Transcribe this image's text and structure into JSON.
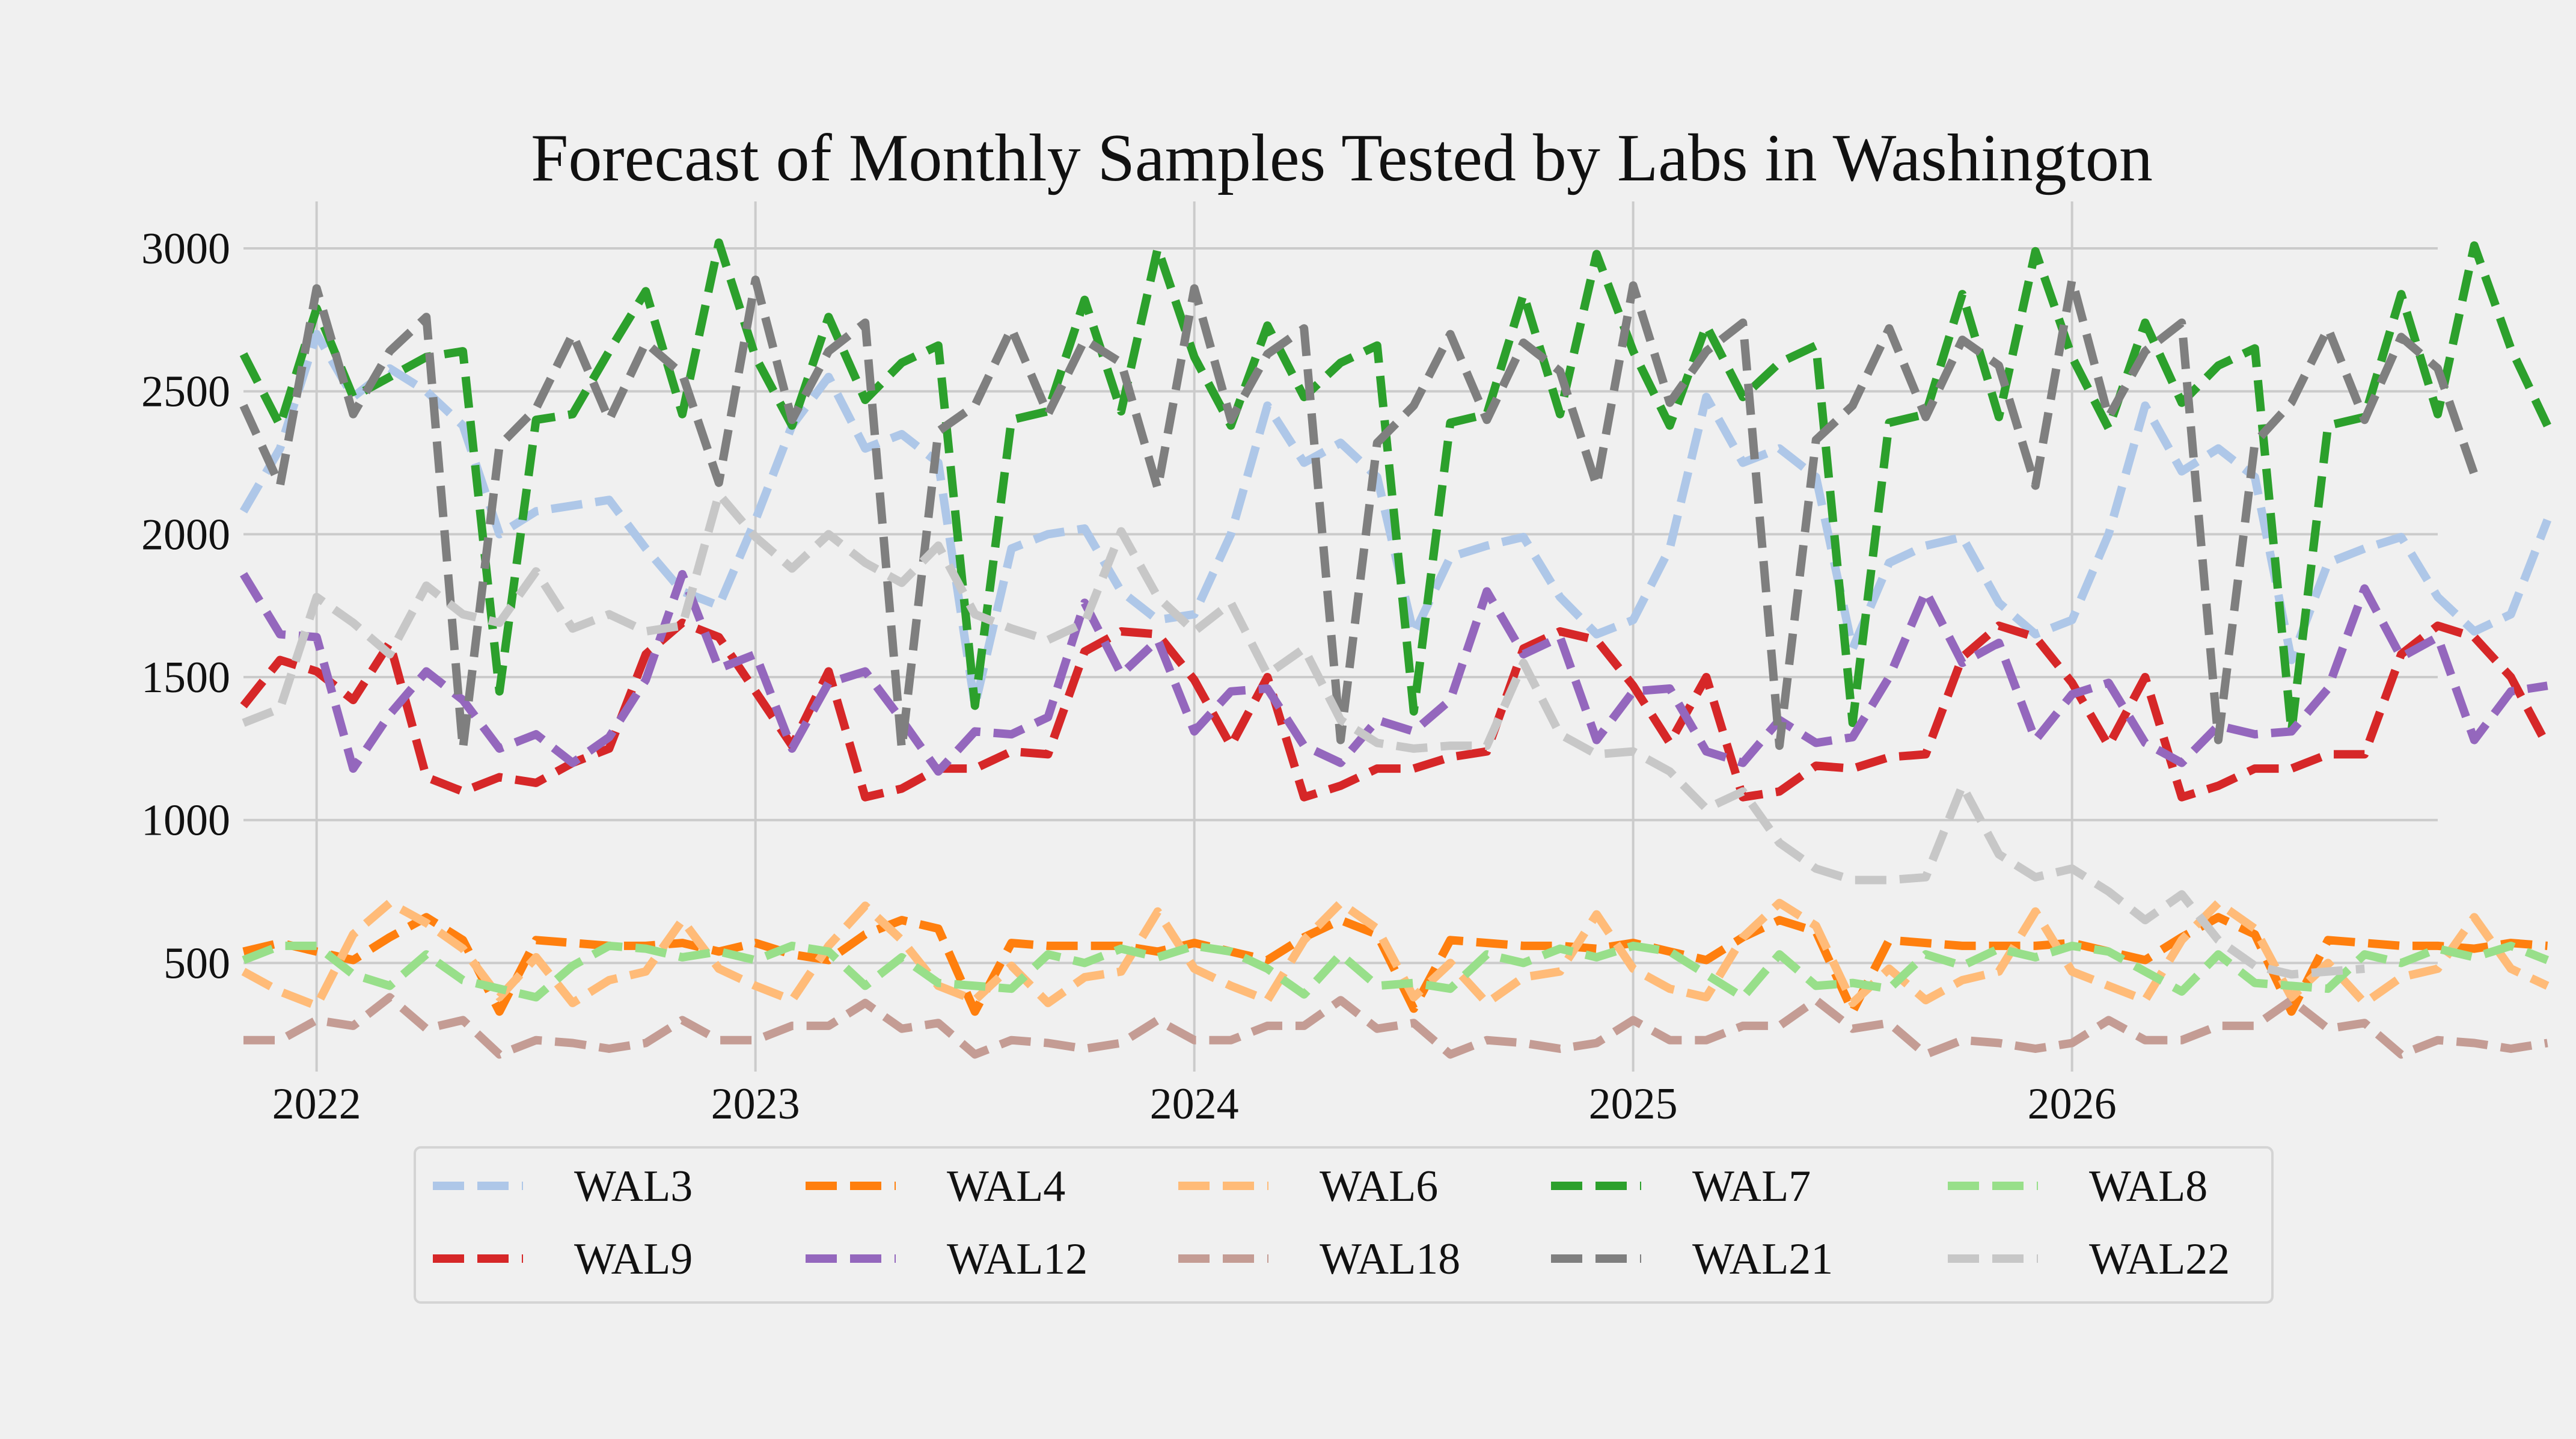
{
  "chart_data": {
    "type": "line",
    "title": "Forecast of Monthly Samples Tested by Labs in Washington",
    "xlabel": "",
    "ylabel": "",
    "x_start": "2021-11",
    "x_end": "2026-11",
    "x_ticks": [
      "2022",
      "2023",
      "2024",
      "2025",
      "2026"
    ],
    "y_ticks": [
      "500",
      "1000",
      "1500",
      "2000",
      "2500",
      "3000"
    ],
    "ylim": [
      120,
      3080
    ],
    "grid": true,
    "legend_position": "bottom-center",
    "legend_columns": 5,
    "series": [
      {
        "name": "WAL3",
        "color": "#aec7e8",
        "values": [
          2080,
          2300,
          2700,
          2480,
          2580,
          2500,
          2380,
          2000,
          2080,
          2100,
          2120,
          1950,
          1800,
          1750,
          2050,
          2380,
          2550,
          2300,
          2350,
          2250,
          1400,
          1950,
          2000,
          2020,
          1800,
          1700,
          1720,
          2000,
          2450,
          2250,
          2320,
          2200,
          1650,
          1920,
          1960,
          1990,
          1780,
          1650,
          1700,
          1950,
          2480,
          2250,
          2300,
          2200,
          1600,
          1900,
          1960,
          1990,
          1760,
          1650,
          1700,
          2000,
          2450,
          2220,
          2300,
          2200,
          1560,
          1900,
          1950,
          1990,
          1780,
          1660,
          1720,
          2050
        ]
      },
      {
        "name": "WAL4",
        "color": "#ff7f0e",
        "values": [
          540,
          570,
          540,
          510,
          590,
          660,
          580,
          330,
          580,
          570,
          560,
          560,
          570,
          540,
          570,
          530,
          510,
          600,
          650,
          620,
          330,
          570,
          560,
          560,
          560,
          540,
          570,
          540,
          510,
          590,
          650,
          600,
          340,
          580,
          570,
          560,
          560,
          550,
          570,
          540,
          510,
          590,
          650,
          610,
          330,
          580,
          570,
          560,
          560,
          560,
          570,
          540,
          510,
          590,
          660,
          600,
          330,
          580,
          570,
          560,
          560,
          550,
          570,
          560
        ]
      },
      {
        "name": "WAL6",
        "color": "#ffbb78",
        "values": [
          470,
          400,
          350,
          600,
          710,
          640,
          550,
          380,
          520,
          360,
          440,
          470,
          650,
          480,
          420,
          370,
          560,
          700,
          580,
          420,
          370,
          490,
          360,
          450,
          470,
          680,
          480,
          420,
          370,
          580,
          710,
          620,
          380,
          500,
          360,
          450,
          470,
          670,
          480,
          410,
          380,
          590,
          710,
          630,
          360,
          480,
          370,
          440,
          470,
          680,
          470,
          420,
          370,
          580,
          710,
          620,
          380,
          500,
          360,
          450,
          480,
          660,
          480,
          420
        ]
      },
      {
        "name": "WAL7",
        "color": "#2ca02c",
        "values": [
          2630,
          2380,
          2790,
          2480,
          2550,
          2620,
          2640,
          1450,
          2400,
          2420,
          2640,
          2850,
          2420,
          3020,
          2620,
          2380,
          2760,
          2470,
          2600,
          2660,
          1400,
          2400,
          2430,
          2820,
          2430,
          3000,
          2620,
          2380,
          2730,
          2480,
          2600,
          2660,
          1380,
          2390,
          2420,
          2840,
          2420,
          2980,
          2640,
          2380,
          2730,
          2480,
          2600,
          2660,
          1340,
          2390,
          2420,
          2840,
          2410,
          2990,
          2620,
          2370,
          2740,
          2460,
          2590,
          2650,
          1310,
          2380,
          2410,
          2840,
          2420,
          3010,
          2650,
          2380
        ]
      },
      {
        "name": "WAL8",
        "color": "#98df8a",
        "values": [
          510,
          560,
          560,
          460,
          420,
          530,
          440,
          410,
          380,
          490,
          560,
          550,
          520,
          540,
          510,
          560,
          540,
          420,
          520,
          430,
          420,
          410,
          530,
          500,
          550,
          520,
          560,
          540,
          480,
          390,
          530,
          420,
          430,
          410,
          530,
          500,
          550,
          520,
          560,
          540,
          460,
          380,
          530,
          420,
          430,
          410,
          530,
          490,
          550,
          520,
          560,
          540,
          470,
          400,
          530,
          430,
          420,
          410,
          530,
          500,
          550,
          520,
          560,
          510
        ]
      },
      {
        "name": "WAL9",
        "color": "#d62728",
        "values": [
          1400,
          1560,
          1520,
          1420,
          1620,
          1150,
          1100,
          1150,
          1130,
          1200,
          1250,
          1580,
          1690,
          1640,
          1450,
          1260,
          1520,
          1080,
          1110,
          1180,
          1180,
          1240,
          1230,
          1590,
          1660,
          1650,
          1490,
          1260,
          1500,
          1080,
          1120,
          1180,
          1180,
          1220,
          1240,
          1600,
          1660,
          1630,
          1470,
          1270,
          1500,
          1080,
          1100,
          1190,
          1180,
          1220,
          1230,
          1570,
          1680,
          1640,
          1480,
          1260,
          1500,
          1080,
          1120,
          1180,
          1180,
          1230,
          1230,
          1580,
          1680,
          1640,
          1500,
          1260
        ]
      },
      {
        "name": "WAL12",
        "color": "#9467bd",
        "values": [
          1860,
          1650,
          1640,
          1180,
          1370,
          1520,
          1420,
          1250,
          1300,
          1200,
          1290,
          1490,
          1860,
          1530,
          1580,
          1250,
          1480,
          1520,
          1350,
          1170,
          1310,
          1300,
          1360,
          1760,
          1510,
          1630,
          1310,
          1450,
          1460,
          1260,
          1200,
          1350,
          1310,
          1420,
          1800,
          1580,
          1640,
          1280,
          1450,
          1460,
          1240,
          1200,
          1350,
          1270,
          1290,
          1500,
          1800,
          1550,
          1620,
          1280,
          1440,
          1480,
          1270,
          1200,
          1330,
          1300,
          1310,
          1460,
          1810,
          1570,
          1640,
          1280,
          1450,
          1470
        ]
      },
      {
        "name": "WAL18",
        "color": "#c49c94",
        "values": [
          230,
          230,
          300,
          280,
          380,
          270,
          300,
          180,
          230,
          220,
          200,
          220,
          300,
          230,
          230,
          280,
          280,
          360,
          270,
          290,
          180,
          230,
          220,
          200,
          220,
          300,
          230,
          230,
          280,
          280,
          370,
          270,
          290,
          180,
          230,
          220,
          200,
          220,
          300,
          230,
          230,
          280,
          280,
          370,
          270,
          290,
          180,
          230,
          220,
          200,
          220,
          300,
          230,
          230,
          280,
          280,
          370,
          270,
          290,
          180,
          230,
          220,
          200,
          220
        ]
      },
      {
        "name": "WAL21",
        "color": "#7f7f7f",
        "values": [
          2450,
          2170,
          2860,
          2420,
          2640,
          2760,
          1250,
          2310,
          2440,
          2700,
          2400,
          2670,
          2560,
          2180,
          2890,
          2400,
          2640,
          2740,
          1250,
          2360,
          2450,
          2720,
          2420,
          2680,
          2600,
          2160,
          2860,
          2400,
          2630,
          2720,
          1280,
          2320,
          2450,
          2700,
          2400,
          2670,
          2570,
          2170,
          2870,
          2460,
          2640,
          2740,
          1260,
          2330,
          2450,
          2720,
          2410,
          2680,
          2590,
          2170,
          2890,
          2410,
          2640,
          2740,
          1280,
          2320,
          2460,
          2720,
          2400,
          2690,
          2580,
          2210
        ]
      },
      {
        "name": "WAL22",
        "color": "#c7c7c7",
        "values": [
          1340,
          1390,
          1780,
          1690,
          1580,
          1820,
          1720,
          1690,
          1870,
          1670,
          1720,
          1660,
          1680,
          2140,
          1990,
          1880,
          2000,
          1900,
          1830,
          1960,
          1720,
          1670,
          1630,
          1690,
          2010,
          1780,
          1660,
          1760,
          1510,
          1600,
          1350,
          1270,
          1250,
          1260,
          1260,
          1550,
          1300,
          1230,
          1240,
          1170,
          1040,
          1100,
          920,
          830,
          790,
          790,
          800,
          1120,
          880,
          800,
          830,
          750,
          650,
          740,
          580,
          490,
          460,
          470,
          480
        ]
      }
    ]
  }
}
